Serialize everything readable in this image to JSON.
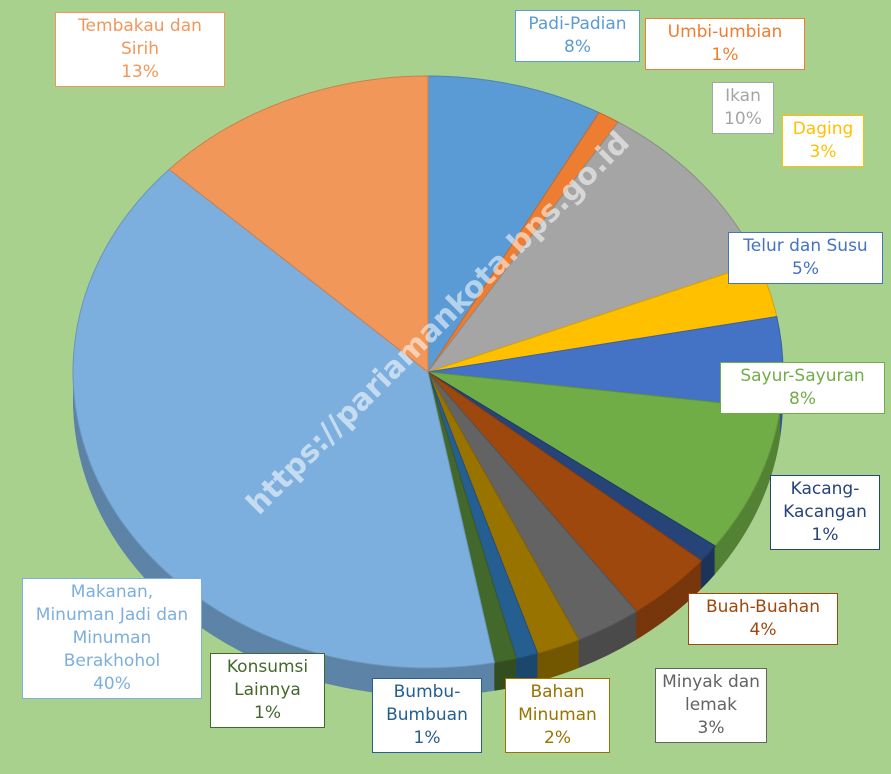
{
  "chart_data": {
    "type": "pie",
    "categories": [
      "Padi-Padian",
      "Umbi-umbian",
      "Ikan",
      "Daging",
      "Telur dan Susu",
      "Sayur-Sayuran",
      "Kacang-Kacangan",
      "Buah-Buahan",
      "Minyak dan lemak",
      "Bahan Minuman",
      "Bumbu-Bumbuan",
      "Konsumsi Lainnya",
      "Makanan, Minuman Jadi dan Minuman Berakhohol",
      "Tembakau dan Sirih"
    ],
    "values": [
      8,
      1,
      10,
      3,
      5,
      8,
      1,
      4,
      3,
      2,
      1,
      1,
      40,
      13
    ],
    "value_labels": [
      "8%",
      "1%",
      "10%",
      "3%",
      "5%",
      "8%",
      "1%",
      "4%",
      "3%",
      "2%",
      "1%",
      "1%",
      "40%",
      "13%"
    ],
    "colors": [
      "#5b9bd5",
      "#ed7d31",
      "#a5a5a5",
      "#ffc000",
      "#4472c4",
      "#70ad47",
      "#264478",
      "#9e480e",
      "#636363",
      "#997300",
      "#255e91",
      "#43682b",
      "#7cafdd",
      "#f1975a"
    ],
    "watermark": "https://pariamankota.bps.go.id"
  }
}
